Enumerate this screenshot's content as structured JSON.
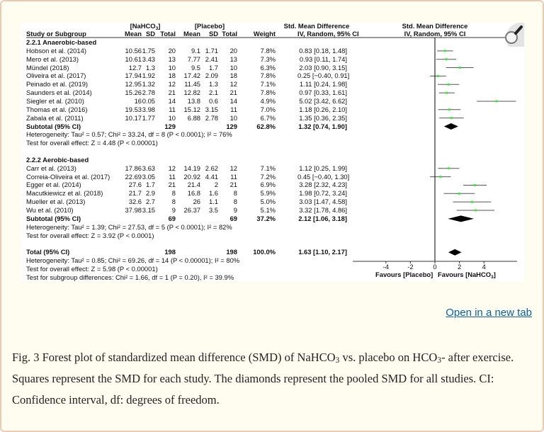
{
  "colors": {
    "page_bg": "#fffdf0",
    "border": "#eccab4",
    "link": "#0b5fa5",
    "square": "#33ee33",
    "ci_line": "#555555",
    "diamond": "#000000"
  },
  "icons": {
    "zoom": "magnifier-icon"
  },
  "figure": {
    "group_header_1": {
      "pre": "[NaHCO",
      "sub": "3",
      "post": "]"
    },
    "group_header_2": "[Placebo]",
    "smd_header": "Std. Mean Difference",
    "smd_subheader": "IV, Random, 95% CI",
    "plot_header": "Std. Mean Difference",
    "plot_subheader": "IV, Random, 95% CI",
    "columns": [
      "Study or Subgroup",
      "Mean",
      "SD",
      "Total",
      "Mean",
      "SD",
      "Total",
      "Weight",
      "IV, Random, 95% CI"
    ]
  },
  "chart_data": {
    "type": "forest",
    "xlim": [
      -6.7,
      6.7
    ],
    "xticks": [
      "-4",
      "-2",
      "0",
      "2",
      "4"
    ],
    "xtick_values": [
      -4,
      -2,
      0,
      2,
      4
    ],
    "xlabel_left": "Favours [Placebo]",
    "xlabel_right": {
      "pre": "Favours [NaHCO",
      "sub": "3",
      "post": "]"
    },
    "subgroups": [
      {
        "title": "2.2.1 Anaerobic-based",
        "studies": [
          {
            "name": "Hobson et al. (2014)",
            "mean1": "10.56",
            "sd1": "1.75",
            "n1": "20",
            "mean2": "9.1",
            "sd2": "1.71",
            "n2": "20",
            "weight": "7.8%",
            "ci_text": "0.83 [0.18, 1.48]",
            "est": 0.83,
            "lo": 0.18,
            "hi": 1.48
          },
          {
            "name": "Mero et al. (2013)",
            "mean1": "10.61",
            "sd1": "3.43",
            "n1": "13",
            "mean2": "7.77",
            "sd2": "2.41",
            "n2": "13",
            "weight": "7.3%",
            "ci_text": "0.93 [0.11, 1.74]",
            "est": 0.93,
            "lo": 0.11,
            "hi": 1.74
          },
          {
            "name": "Mündel (2018)",
            "mean1": "12.7",
            "sd1": "1.3",
            "n1": "10",
            "mean2": "9.5",
            "sd2": "1.7",
            "n2": "10",
            "weight": "6.3%",
            "ci_text": "2.03 [0.90, 3.15]",
            "est": 2.03,
            "lo": 0.9,
            "hi": 3.15
          },
          {
            "name": "Oliveira et al. (2017)",
            "mean1": "17.94",
            "sd1": "1.92",
            "n1": "18",
            "mean2": "17.42",
            "sd2": "2.09",
            "n2": "18",
            "weight": "7.8%",
            "ci_text": "0.25 [−0.40, 0.91]",
            "est": 0.25,
            "lo": -0.4,
            "hi": 0.91
          },
          {
            "name": "Peinado et al. (2019)",
            "mean1": "12.95",
            "sd1": "1.32",
            "n1": "12",
            "mean2": "11.45",
            "sd2": "1.3",
            "n2": "12",
            "weight": "7.1%",
            "ci_text": "1.11 [0.24, 1.98]",
            "est": 1.11,
            "lo": 0.24,
            "hi": 1.98
          },
          {
            "name": "Saunders et al. (2014)",
            "mean1": "15.26",
            "sd1": "2.78",
            "n1": "21",
            "mean2": "12.82",
            "sd2": "2.1",
            "n2": "21",
            "weight": "7.8%",
            "ci_text": "0.97 [0.33, 1.61]",
            "est": 0.97,
            "lo": 0.33,
            "hi": 1.61
          },
          {
            "name": "Siegler et al. (2010)",
            "mean1": "16",
            "sd1": "0.05",
            "n1": "14",
            "mean2": "13.8",
            "sd2": "0.6",
            "n2": "14",
            "weight": "4.9%",
            "ci_text": "5.02 [3.42, 6.62]",
            "est": 5.02,
            "lo": 3.42,
            "hi": 6.62
          },
          {
            "name": "Thomas et al. (2016)",
            "mean1": "19.53",
            "sd1": "3.98",
            "n1": "11",
            "mean2": "15.12",
            "sd2": "3.15",
            "n2": "11",
            "weight": "7.0%",
            "ci_text": "1.18 [0.26, 2.10]",
            "est": 1.18,
            "lo": 0.26,
            "hi": 2.1
          },
          {
            "name": "Zabala et al. (2011)",
            "mean1": "10.17",
            "sd1": "1.77",
            "n1": "10",
            "mean2": "6.88",
            "sd2": "2.78",
            "n2": "10",
            "weight": "6.7%",
            "ci_text": "1.35 [0.36, 2.35]",
            "est": 1.35,
            "lo": 0.36,
            "hi": 2.35
          }
        ],
        "subtotal": {
          "label": "Subtotal (95% CI)",
          "n1": "129",
          "n2": "129",
          "weight": "62.8%",
          "ci_text": "1.32 [0.74, 1.90]",
          "est": 1.32,
          "lo": 0.74,
          "hi": 1.9
        },
        "heterogeneity": "Heterogeneity: Tau² = 0.57; Chi² = 33.24, df = 8 (P < 0.0001); I² = 76%",
        "overall": "Test for overall effect: Z = 4.48 (P < 0.00001)"
      },
      {
        "title": "2.2.2 Aerobic-based",
        "studies": [
          {
            "name": "Carr et al. (2013)",
            "mean1": "17.86",
            "sd1": "3.63",
            "n1": "12",
            "mean2": "14.19",
            "sd2": "2.62",
            "n2": "12",
            "weight": "7.1%",
            "ci_text": "1.12 [0.25, 1.99]",
            "est": 1.12,
            "lo": 0.25,
            "hi": 1.99
          },
          {
            "name": "Correia-Oliveira et al. (2017)",
            "mean1": "22.69",
            "sd1": "3.05",
            "n1": "11",
            "mean2": "20.92",
            "sd2": "4.41",
            "n2": "11",
            "weight": "7.2%",
            "ci_text": "0.45 [−0.40, 1.30]",
            "est": 0.45,
            "lo": -0.4,
            "hi": 1.3
          },
          {
            "name": "Egger et al. (2014)",
            "mean1": "27.6",
            "sd1": "1.7",
            "n1": "21",
            "mean2": "21.4",
            "sd2": "2",
            "n2": "21",
            "weight": "6.9%",
            "ci_text": "3.28 [2.32, 4.23]",
            "est": 3.28,
            "lo": 2.32,
            "hi": 4.23
          },
          {
            "name": "Macutkiewicz et al. (2018)",
            "mean1": "21.7",
            "sd1": "2.9",
            "n1": "8",
            "mean2": "16.8",
            "sd2": "1.6",
            "n2": "8",
            "weight": "5.9%",
            "ci_text": "1.98 [0.72, 3.24]",
            "est": 1.98,
            "lo": 0.72,
            "hi": 3.24
          },
          {
            "name": "Mueller et al. (2013)",
            "mean1": "32.6",
            "sd1": "2.7",
            "n1": "8",
            "mean2": "26",
            "sd2": "1.1",
            "n2": "8",
            "weight": "5.0%",
            "ci_text": "3.03 [1.47, 4.58]",
            "est": 3.03,
            "lo": 1.47,
            "hi": 4.58
          },
          {
            "name": "Wu et al. (2010)",
            "mean1": "37.98",
            "sd1": "3.15",
            "n1": "9",
            "mean2": "26.37",
            "sd2": "3.5",
            "n2": "9",
            "weight": "5.1%",
            "ci_text": "3.32 [1.78, 4.86]",
            "est": 3.32,
            "lo": 1.78,
            "hi": 4.86
          }
        ],
        "subtotal": {
          "label": "Subtotal (95% CI)",
          "n1": "69",
          "n2": "69",
          "weight": "37.2%",
          "ci_text": "2.12 [1.06, 3.18]",
          "est": 2.12,
          "lo": 1.06,
          "hi": 3.18
        },
        "heterogeneity": "Heterogeneity: Tau² = 1.39; Chi² = 27.53, df = 5 (P < 0.0001); I² = 82%",
        "overall": "Test for overall effect: Z = 3.92 (P < 0.0001)"
      }
    ],
    "total": {
      "label": "Total (95% CI)",
      "n1": "198",
      "n2": "198",
      "weight": "100.0%",
      "ci_text": "1.63 [1.10, 2.17]",
      "est": 1.63,
      "lo": 1.1,
      "hi": 2.17
    },
    "total_heterogeneity": "Heterogeneity: Tau² = 0.85; Chi² = 69.26, df = 14 (P < 0.00001); I² = 80%",
    "total_overall": "Test for overall effect: Z = 5.98 (P < 0.00001)",
    "subgroup_diff": "Test for subgroup differences: Chi² = 1.66, df = 1 (P = 0.20), I² = 39.9%"
  },
  "link": {
    "label": "Open in a new tab"
  },
  "caption": {
    "p1": "Fig. 3 Forest plot of standardized mean difference (SMD) of NaHCO",
    "s1": "3",
    "p2": " vs. placebo on HCO",
    "s2": "3",
    "p3": "- after exercise. Squares represent the SMD for each study. The diamonds represent the pooled SMD for all studies. CI: Confidence interval, df: degrees of freedom."
  }
}
